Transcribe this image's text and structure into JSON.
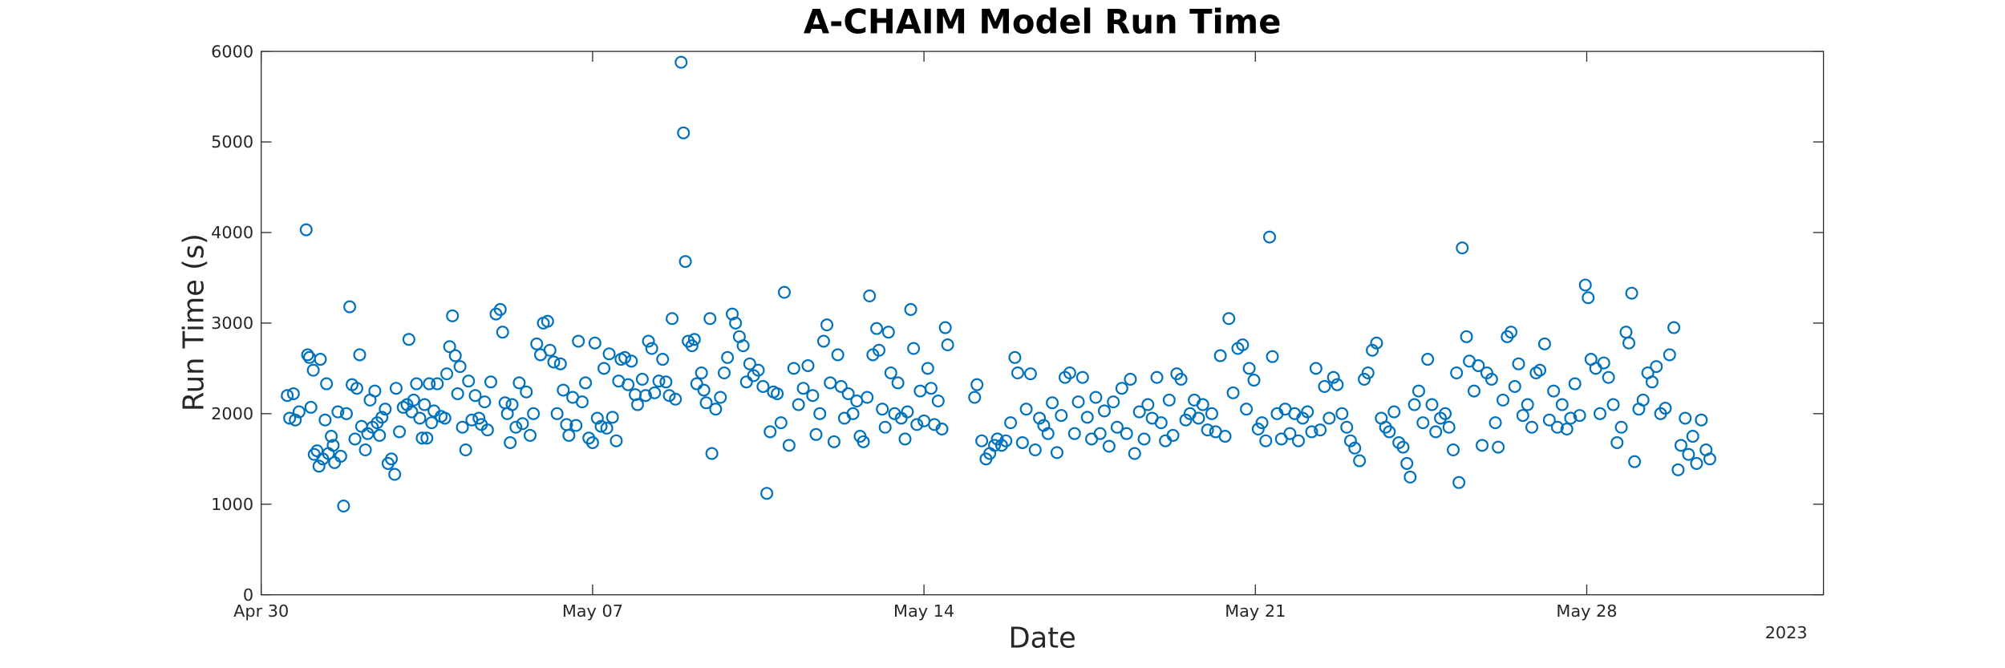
{
  "chart_data": {
    "type": "scatter",
    "title": "A-CHAIM Model Run Time",
    "xlabel": "Date",
    "ylabel": "Run Time (s)",
    "year_label": "2023",
    "color": "#0072bd",
    "marker": "open-circle",
    "grid": false,
    "xlim": [
      0,
      33
    ],
    "xticks": [
      {
        "value": 0,
        "label": "Apr 30"
      },
      {
        "value": 7,
        "label": "May 07"
      },
      {
        "value": 14,
        "label": "May 14"
      },
      {
        "value": 21,
        "label": "May 21"
      },
      {
        "value": 28,
        "label": "May 28"
      }
    ],
    "ylim": [
      0,
      6000
    ],
    "yticks": [
      0,
      1000,
      2000,
      3000,
      4000,
      5000,
      6000
    ],
    "x": [
      0.55,
      0.6,
      0.68,
      0.72,
      0.8,
      0.95,
      0.98,
      1.02,
      1.05,
      1.1,
      1.12,
      1.18,
      1.22,
      1.25,
      1.3,
      1.35,
      1.38,
      1.42,
      1.48,
      1.52,
      1.55,
      1.62,
      1.68,
      1.74,
      1.8,
      1.87,
      1.92,
      1.98,
      2.02,
      2.08,
      2.12,
      2.2,
      2.25,
      2.3,
      2.35,
      2.4,
      2.45,
      2.5,
      2.55,
      2.62,
      2.68,
      2.75,
      2.82,
      2.85,
      2.92,
      3.0,
      3.08,
      3.12,
      3.18,
      3.22,
      3.28,
      3.35,
      3.4,
      3.45,
      3.5,
      3.55,
      3.6,
      3.65,
      3.72,
      3.8,
      3.88,
      3.92,
      3.98,
      4.04,
      4.1,
      4.15,
      4.2,
      4.25,
      4.32,
      4.38,
      4.45,
      4.52,
      4.6,
      4.65,
      4.72,
      4.78,
      4.85,
      4.96,
      5.05,
      5.1,
      5.15,
      5.2,
      5.26,
      5.3,
      5.38,
      5.45,
      5.52,
      5.6,
      5.68,
      5.75,
      5.82,
      5.9,
      5.96,
      6.05,
      6.1,
      6.18,
      6.25,
      6.32,
      6.38,
      6.45,
      6.5,
      6.58,
      6.65,
      6.7,
      6.78,
      6.85,
      6.92,
      7.0,
      7.05,
      7.1,
      7.18,
      7.24,
      7.3,
      7.35,
      7.42,
      7.5,
      7.55,
      7.6,
      7.68,
      7.75,
      7.82,
      7.9,
      7.95,
      8.05,
      8.12,
      8.18,
      8.25,
      8.31,
      8.4,
      8.48,
      8.55,
      8.62,
      8.68,
      8.75,
      8.87,
      8.92,
      8.96,
      9.02,
      9.1,
      9.15,
      9.2,
      9.3,
      9.35,
      9.4,
      9.48,
      9.52,
      9.6,
      9.7,
      9.78,
      9.85,
      9.95,
      10.02,
      10.1,
      10.18,
      10.25,
      10.32,
      10.4,
      10.5,
      10.6,
      10.68,
      10.75,
      10.82,
      10.9,
      10.98,
      11.05,
      11.15,
      11.25,
      11.35,
      11.45,
      11.55,
      11.65,
      11.72,
      11.8,
      11.88,
      11.95,
      12.02,
      12.1,
      12.18,
      12.25,
      12.32,
      12.4,
      12.5,
      12.58,
      12.65,
      12.72,
      12.8,
      12.85,
      12.92,
      13.0,
      13.05,
      13.12,
      13.18,
      13.25,
      13.3,
      13.38,
      13.45,
      13.52,
      13.6,
      13.65,
      13.72,
      13.78,
      13.85,
      13.92,
      14.0,
      14.08,
      14.15,
      14.22,
      14.3,
      14.38,
      14.45,
      14.5,
      15.07,
      15.12,
      15.22,
      15.31,
      15.39,
      15.49,
      15.55,
      15.64,
      15.73,
      15.83,
      15.92,
      15.98,
      16.08,
      16.16,
      16.25,
      16.35,
      16.44,
      16.53,
      16.62,
      16.71,
      16.81,
      16.9,
      16.98,
      17.08,
      17.18,
      17.26,
      17.35,
      17.45,
      17.54,
      17.63,
      17.72,
      17.81,
      17.91,
      18.0,
      18.08,
      18.18,
      18.28,
      18.36,
      18.45,
      18.55,
      18.65,
      18.73,
      18.82,
      18.92,
      19.01,
      19.1,
      19.18,
      19.26,
      19.34,
      19.43,
      19.53,
      19.62,
      19.71,
      19.8,
      19.89,
      19.99,
      20.08,
      20.16,
      20.26,
      20.36,
      20.44,
      20.53,
      20.63,
      20.73,
      20.81,
      20.87,
      20.97,
      21.06,
      21.14,
      21.22,
      21.3,
      21.36,
      21.46,
      21.55,
      21.63,
      21.73,
      21.83,
      21.91,
      22.0,
      22.1,
      22.19,
      22.28,
      22.37,
      22.46,
      22.56,
      22.65,
      22.73,
      22.83,
      22.93,
      23.01,
      23.1,
      23.2,
      23.3,
      23.38,
      23.47,
      23.56,
      23.66,
      23.75,
      23.83,
      23.93,
      24.03,
      24.12,
      24.2,
      24.27,
      24.36,
      24.45,
      24.54,
      24.64,
      24.73,
      24.81,
      24.91,
      25.01,
      25.09,
      25.18,
      25.25,
      25.3,
      25.37,
      25.46,
      25.52,
      25.62,
      25.71,
      25.79,
      25.89,
      25.99,
      26.07,
      26.13,
      26.23,
      26.32,
      26.4,
      26.48,
      26.56,
      26.65,
      26.75,
      26.84,
      26.93,
      27.01,
      27.11,
      27.21,
      27.3,
      27.38,
      27.48,
      27.58,
      27.66,
      27.75,
      27.85,
      27.97,
      28.03,
      28.09,
      28.19,
      28.28,
      28.36,
      28.46,
      28.56,
      28.64,
      28.73,
      28.83,
      28.89,
      28.95,
      29.01,
      29.1,
      29.19,
      29.29,
      29.38,
      29.47,
      29.56,
      29.66,
      29.75,
      29.84,
      29.93,
      29.99,
      30.08,
      30.15,
      30.24,
      30.32,
      30.42,
      30.52,
      30.6
    ],
    "values": [
      2200,
      1950,
      2220,
      1930,
      2020,
      4030,
      2650,
      2620,
      2070,
      2480,
      1550,
      1590,
      1420,
      2600,
      1500,
      1930,
      2330,
      1560,
      1750,
      1650,
      1460,
      2020,
      1530,
      980,
      2000,
      3180,
      2320,
      1720,
      2280,
      2650,
      1860,
      1600,
      1780,
      2150,
      1850,
      2250,
      1900,
      1760,
      1960,
      2050,
      1450,
      1500,
      1330,
      2280,
      1800,
      2070,
      2100,
      2820,
      2020,
      2150,
      2330,
      1950,
      1730,
      2100,
      1730,
      2330,
      1900,
      2030,
      2330,
      1970,
      1950,
      2440,
      2740,
      3080,
      2640,
      2220,
      2520,
      1850,
      1600,
      2360,
      1930,
      2200,
      1950,
      1880,
      2130,
      1820,
      2350,
      3100,
      3150,
      2900,
      2120,
      2000,
      1680,
      2100,
      1850,
      2340,
      1890,
      2240,
      1760,
      2000,
      2770,
      2650,
      3000,
      3020,
      2700,
      2570,
      2000,
      2550,
      2260,
      1880,
      1760,
      2180,
      1870,
      2800,
      2130,
      2340,
      1730,
      1680,
      2780,
      1950,
      1860,
      2500,
      1840,
      2660,
      1960,
      1700,
      2360,
      2600,
      2620,
      2320,
      2580,
      2210,
      2100,
      2380,
      2200,
      2800,
      2720,
      2230,
      2360,
      2600,
      2350,
      2200,
      3050,
      2160,
      5880,
      5100,
      3680,
      2800,
      2750,
      2820,
      2330,
      2450,
      2260,
      2120,
      3050,
      1560,
      2050,
      2180,
      2450,
      2620,
      3100,
      3000,
      2850,
      2750,
      2350,
      2550,
      2420,
      2480,
      2300,
      1120,
      1800,
      2240,
      2220,
      1900,
      3340,
      1650,
      2500,
      2100,
      2280,
      2530,
      2200,
      1770,
      2000,
      2800,
      2980,
      2340,
      1690,
      2650,
      2300,
      1950,
      2220,
      2000,
      2140,
      1750,
      1690,
      2180,
      3300,
      2650,
      2940,
      2700,
      2050,
      1850,
      2900,
      2450,
      2000,
      2340,
      1950,
      1720,
      2020,
      3150,
      2720,
      1880,
      2250,
      1920,
      2500,
      2280,
      1880,
      2140,
      1830,
      2950,
      2760,
      2180,
      2320,
      1700,
      1500,
      1560,
      1650,
      1720,
      1650,
      1700,
      1900,
      2620,
      2450,
      1680,
      2050,
      2440,
      1600,
      1950,
      1870,
      1780,
      2120,
      1570,
      1980,
      2400,
      2450,
      1780,
      2130,
      2400,
      1960,
      1720,
      2180,
      1780,
      2030,
      1640,
      2130,
      1850,
      2280,
      1780,
      2380,
      1560,
      2020,
      1720,
      2100,
      1950,
      2400,
      1900,
      1700,
      2150,
      1760,
      2440,
      2380,
      1930,
      2000,
      2150,
      1950,
      2100,
      1820,
      2000,
      1800,
      2640,
      1750,
      3050,
      2230,
      2720,
      2760,
      2050,
      2500,
      2370,
      1830,
      1900,
      1700,
      3950,
      2630,
      2000,
      1720,
      2050,
      1780,
      2000,
      1700,
      1950,
      2020,
      1800,
      2500,
      1820,
      2300,
      1950,
      2400,
      2320,
      2000,
      1850,
      1700,
      1620,
      1480,
      2380,
      2450,
      2700,
      2780,
      1950,
      1850,
      1800,
      2020,
      1680,
      1630,
      1450,
      1300,
      2100,
      2250,
      1900,
      2600,
      2100,
      1800,
      1950,
      2000,
      1850,
      1600,
      2450,
      1240,
      3830,
      2850,
      2580,
      2250,
      2530,
      1650,
      2450,
      2380,
      1900,
      1630,
      2150,
      2850,
      2900,
      2300,
      2550,
      1980,
      2100,
      1850,
      2450,
      2480,
      2770,
      1930,
      2250,
      1850,
      2100,
      1830,
      1950,
      2330,
      1980,
      3420,
      3280,
      2600,
      2500,
      2000,
      2560,
      2400,
      2100,
      1680,
      1850,
      2900,
      2780,
      3330,
      1470,
      2050,
      2150,
      2450,
      2350,
      2520,
      2000,
      2060,
      2650,
      2950,
      1380,
      1650,
      1950,
      1550,
      1750,
      1450,
      1930,
      1600,
      1500
    ]
  }
}
